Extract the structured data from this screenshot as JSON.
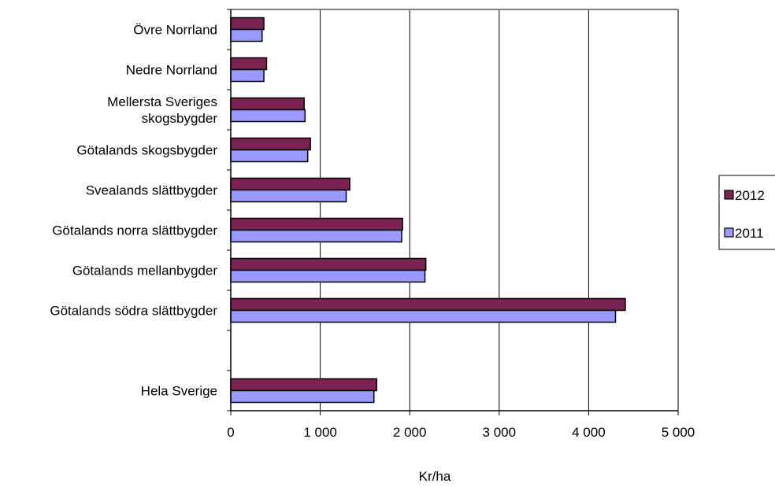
{
  "chart_data": {
    "type": "bar",
    "orientation": "horizontal",
    "categories": [
      [
        "Övre Norrland"
      ],
      [
        "Nedre Norrland"
      ],
      [
        "Mellersta Sveriges",
        "skogsbygder"
      ],
      [
        "Götalands skogsbygder"
      ],
      [
        "Svealands slättbygder"
      ],
      [
        "Götalands norra slättbygder"
      ],
      [
        "Götalands mellanbygder"
      ],
      [
        "Götalands södra slättbygder"
      ],
      [],
      [
        "Hela Sverige"
      ]
    ],
    "series": [
      {
        "name": "2012",
        "color": "#7b2352",
        "values": [
          370,
          400,
          820,
          890,
          1330,
          1920,
          2180,
          4410,
          null,
          1630
        ]
      },
      {
        "name": "2011",
        "color": "#9999ff",
        "values": [
          350,
          370,
          830,
          860,
          1290,
          1910,
          2170,
          4300,
          null,
          1600
        ]
      }
    ],
    "xlabel": "Kr/ha",
    "xlim": [
      0,
      5000
    ],
    "xticks": [
      {
        "value": 0,
        "label": "0"
      },
      {
        "value": 1000,
        "label": "1 000"
      },
      {
        "value": 2000,
        "label": "2 000"
      },
      {
        "value": 3000,
        "label": "3 000"
      },
      {
        "value": 4000,
        "label": "4 000"
      },
      {
        "value": 5000,
        "label": "5 000"
      }
    ],
    "grid": "vertical",
    "legend": {
      "position": "right",
      "entries": [
        "2012",
        "2011"
      ]
    }
  }
}
